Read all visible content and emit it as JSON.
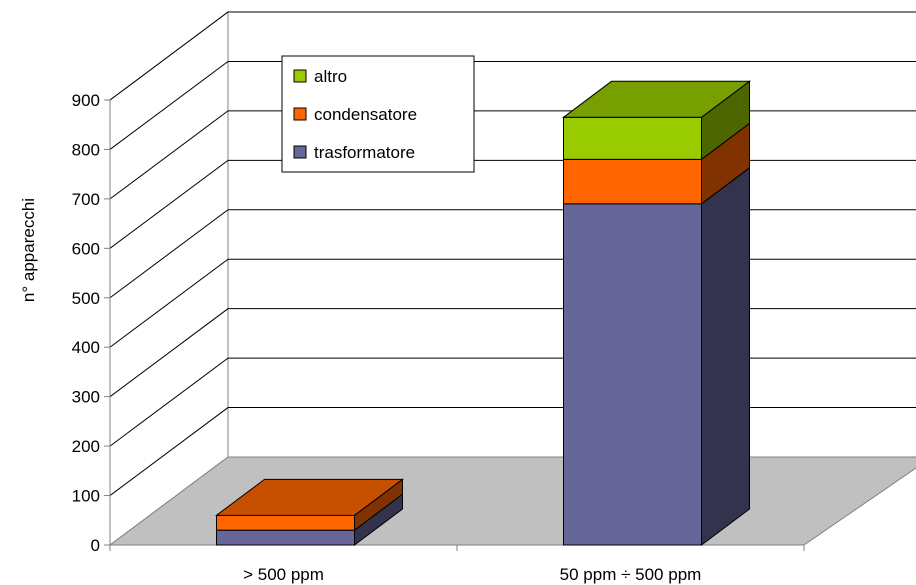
{
  "chart_data": {
    "type": "bar",
    "stacked": true,
    "three_d": true,
    "categories": [
      "> 500 ppm",
      "50 ppm ÷ 500 ppm"
    ],
    "series": [
      {
        "name": "trasformatore",
        "values": [
          30,
          690
        ],
        "color": "#666699"
      },
      {
        "name": "condensatore",
        "values": [
          30,
          90
        ],
        "color": "#FF6600"
      },
      {
        "name": "altro",
        "values": [
          0,
          85
        ],
        "color": "#99CC00"
      }
    ],
    "ylabel": "n° apparecchi",
    "ylim": [
      0,
      900
    ],
    "yticks": [
      0,
      100,
      200,
      300,
      400,
      500,
      600,
      700,
      800,
      900
    ],
    "grid": true,
    "legend_position": "top-left",
    "floor_color": "#C0C0C0"
  }
}
